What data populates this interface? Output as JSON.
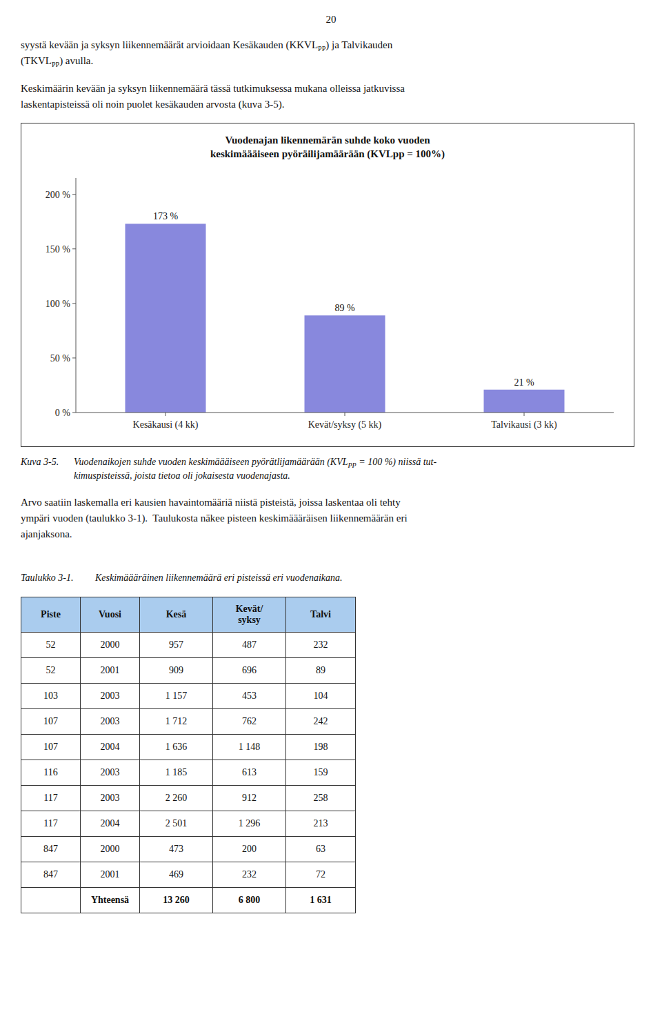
{
  "chart_data": {
    "type": "bar",
    "title": "Vuodenajan likennemärän suhde koko vuoden\nkeskimäääiseen pyöräilijamäärään (KVLpp = 100%)",
    "categories": [
      "Kesäkausi (4 kk)",
      "Kevät/syksy (5 kk)",
      "Talvikausi (3 kk)"
    ],
    "values": [
      173,
      89,
      21
    ],
    "value_labels": [
      "173 %",
      "89 %",
      "21 %"
    ],
    "data_labels": true,
    "color": "#8888dd",
    "ylim": [
      0,
      215
    ],
    "yticks": [
      {
        "value": 0,
        "label": "0 %"
      },
      {
        "value": 50,
        "label": "50 %"
      },
      {
        "value": 100,
        "label": "100 %"
      },
      {
        "value": 150,
        "label": "150 %"
      },
      {
        "value": 200,
        "label": "200 %"
      }
    ],
    "grid": false
  },
  "page": {
    "page_number": "20",
    "paragraphs_before": [
      [
        [
          "syystä kevään ja syksyn liikennemäärät arvioidaan Kesäkauden (KKVL",
          {
            "sub": "PP"
          },
          ") ja Talvikauden"
        ],
        [
          "(TKVL",
          {
            "sub": "PP"
          },
          ") avulla."
        ]
      ],
      [
        [
          "Keskimäärin kevään ja syksyn liikennemäärä tässä tutkimuksessa mukana olleissa jatkuvissa"
        ],
        [
          "laskentapisteissä oli noin puolet kesäkauden arvosta (kuva 3-5)."
        ]
      ]
    ],
    "figure_caption": {
      "label": "Kuva 3-5.",
      "lines": [
        [
          "Vuodenaikojen suhde vuoden keskimäääiseen pyörätlijamäärään (KVL",
          {
            "sub": "PP"
          },
          " = 100 %) niissä tut-"
        ],
        [
          "kimuspisteissä, joista tietoa oli jokaisesta vuodenajasta."
        ]
      ]
    },
    "paragraphs_after": [
      [
        [
          "Arvo saatiin laskemalla eri kausien havaintomääriä niistä pisteistä, joissa laskentaa oli tehty"
        ],
        [
          "ympäri vuoden (taulukko 3-1).  Taulukosta näkee pisteen keskimäääräisen liikennemäärän eri"
        ],
        [
          "ajanjaksona."
        ]
      ]
    ],
    "table_caption": {
      "label": "Taulukko 3-1.",
      "text": "Keskimäääräinen liikennemäärä eri pisteissä eri vuodenaikana."
    },
    "table": {
      "header_color": "#aaccee",
      "headers": [
        "Piste",
        "Vuosi",
        "Kesä",
        "Kevät/\nsyksy",
        "Talvi"
      ],
      "rows": [
        [
          "52",
          "2000",
          "957",
          "487",
          "232"
        ],
        [
          "52",
          "2001",
          "909",
          "696",
          "89"
        ],
        [
          "103",
          "2003",
          "1 157",
          "453",
          "104"
        ],
        [
          "107",
          "2003",
          "1 712",
          "762",
          "242"
        ],
        [
          "107",
          "2004",
          "1 636",
          "1 148",
          "198"
        ],
        [
          "116",
          "2003",
          "1 185",
          "613",
          "159"
        ],
        [
          "117",
          "2003",
          "2 260",
          "912",
          "258"
        ],
        [
          "117",
          "2004",
          "2 501",
          "1 296",
          "213"
        ],
        [
          "847",
          "2000",
          "473",
          "200",
          "63"
        ],
        [
          "847",
          "2001",
          "469",
          "232",
          "72"
        ]
      ],
      "total_row": [
        null,
        "Yhteensä",
        "13 260",
        "6 800",
        "1 631"
      ]
    }
  }
}
